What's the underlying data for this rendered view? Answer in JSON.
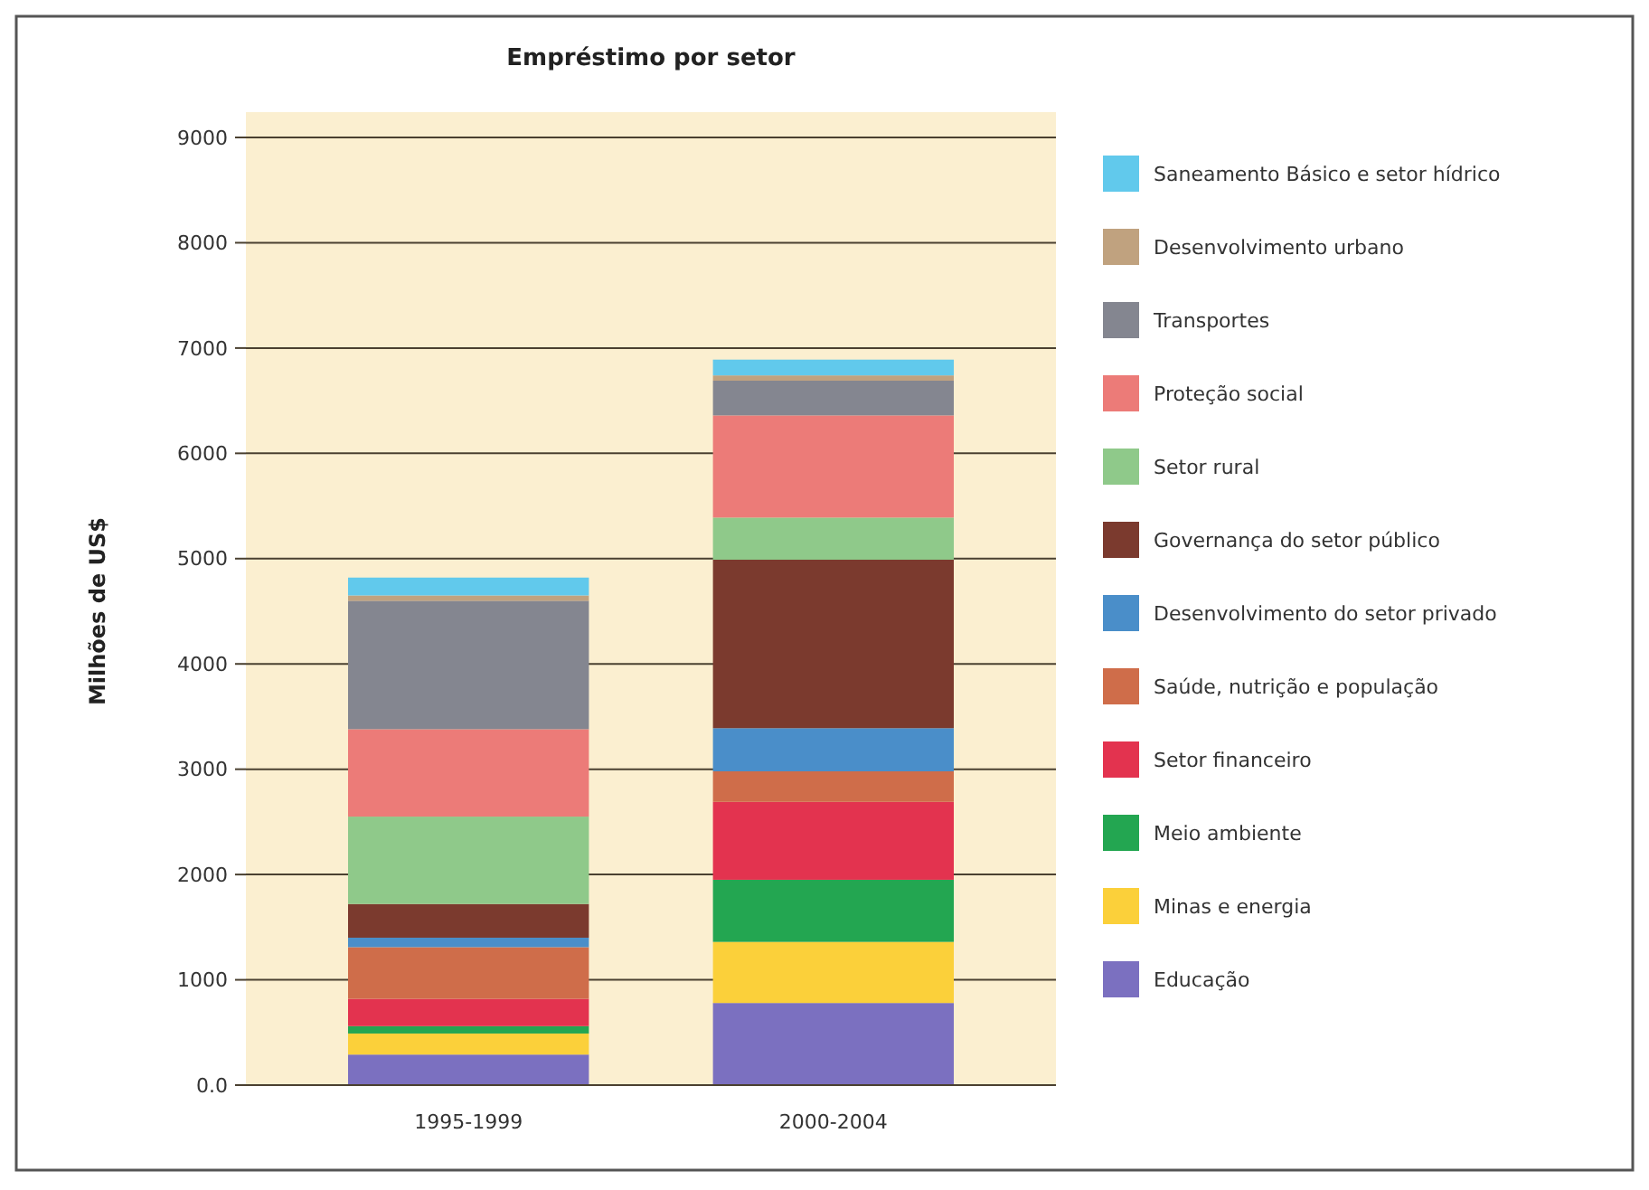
{
  "chart_data": {
    "type": "bar",
    "stacked": true,
    "title": "Empréstimo por setor",
    "ylabel": "Milhões de US$",
    "categories": [
      "1995-1999",
      "2000-2004"
    ],
    "series": [
      {
        "name": "Educação",
        "color": "#7b70c0",
        "values": [
          290,
          780
        ]
      },
      {
        "name": "Minas e energia",
        "color": "#fbd03a",
        "values": [
          200,
          580
        ]
      },
      {
        "name": "Meio ambiente",
        "color": "#23a651",
        "values": [
          70,
          590
        ]
      },
      {
        "name": "Setor financeiro",
        "color": "#e3334f",
        "values": [
          260,
          740
        ]
      },
      {
        "name": "Saúde, nutrição e população",
        "color": "#cf6d4a",
        "values": [
          490,
          290
        ]
      },
      {
        "name": "Desenvolvimento do setor privado",
        "color": "#4a8ec9",
        "values": [
          90,
          410
        ]
      },
      {
        "name": "Governança do setor público",
        "color": "#7b3a2e",
        "values": [
          320,
          1600
        ]
      },
      {
        "name": "Setor rural",
        "color": "#8fc98a",
        "values": [
          830,
          400
        ]
      },
      {
        "name": "Proteção social",
        "color": "#ec7b78",
        "values": [
          830,
          970
        ]
      },
      {
        "name": "Transportes",
        "color": "#848690",
        "values": [
          1220,
          330
        ]
      },
      {
        "name": "Desenvolvimento urbano",
        "color": "#c0a27f",
        "values": [
          50,
          50
        ]
      },
      {
        "name": "Saneamento Básico e setor hídrico",
        "color": "#61c9ec",
        "values": [
          170,
          150
        ]
      }
    ],
    "ylim": [
      0,
      9000
    ],
    "yticks": [
      {
        "value": 0,
        "label": "0.0"
      },
      1000,
      2000,
      3000,
      4000,
      5000,
      6000,
      7000,
      8000,
      9000
    ],
    "grid": "y",
    "legend": "right"
  }
}
